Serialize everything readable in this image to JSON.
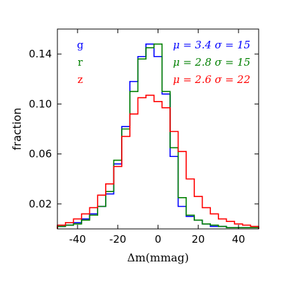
{
  "chart_data": {
    "type": "line",
    "drawstyle": "steps",
    "xlabel": "Δm(mmag)",
    "ylabel": "fraction",
    "xlim": [
      -50,
      50
    ],
    "ylim": [
      0,
      0.16
    ],
    "xticks": [
      -40,
      -20,
      0,
      20,
      40
    ],
    "xtick_labels": [
      "-40",
      "-20",
      "0",
      "20",
      "40"
    ],
    "yticks": [
      0.02,
      0.06,
      0.1,
      0.14
    ],
    "ytick_labels": [
      "0.02",
      "0.06",
      "0.10",
      "0.14"
    ],
    "grid": false,
    "legend_position": "top-right",
    "bin_edges": [
      -50,
      -46,
      -42,
      -38,
      -34,
      -30,
      -26,
      -22,
      -18,
      -14,
      -10,
      -6,
      -2,
      2,
      6,
      10,
      14,
      18,
      22,
      26,
      30,
      34,
      38,
      42,
      46,
      50
    ],
    "series": [
      {
        "name": "g",
        "stat_label": "μ = 3.4   σ = 15",
        "color": "#0000ff",
        "values": [
          0.002,
          0.003,
          0.005,
          0.008,
          0.012,
          0.018,
          0.028,
          0.052,
          0.082,
          0.118,
          0.138,
          0.148,
          0.138,
          0.108,
          0.058,
          0.018,
          0.01,
          0.007,
          0.004,
          0.002,
          0.002,
          0.001,
          0.001,
          0.001,
          0.001
        ]
      },
      {
        "name": "r",
        "stat_label": "μ = 2.8   σ = 15",
        "color": "#008000",
        "values": [
          0.002,
          0.003,
          0.004,
          0.007,
          0.011,
          0.018,
          0.03,
          0.055,
          0.08,
          0.11,
          0.136,
          0.145,
          0.148,
          0.11,
          0.065,
          0.025,
          0.011,
          0.007,
          0.004,
          0.003,
          0.002,
          0.001,
          0.001,
          0.001,
          0.001
        ]
      },
      {
        "name": "z",
        "stat_label": "μ = 2.6   σ = 22",
        "color": "#ff0000",
        "values": [
          0.003,
          0.005,
          0.008,
          0.012,
          0.017,
          0.027,
          0.036,
          0.05,
          0.074,
          0.092,
          0.105,
          0.107,
          0.102,
          0.097,
          0.078,
          0.062,
          0.04,
          0.026,
          0.017,
          0.012,
          0.008,
          0.006,
          0.004,
          0.003,
          0.002
        ]
      }
    ]
  }
}
